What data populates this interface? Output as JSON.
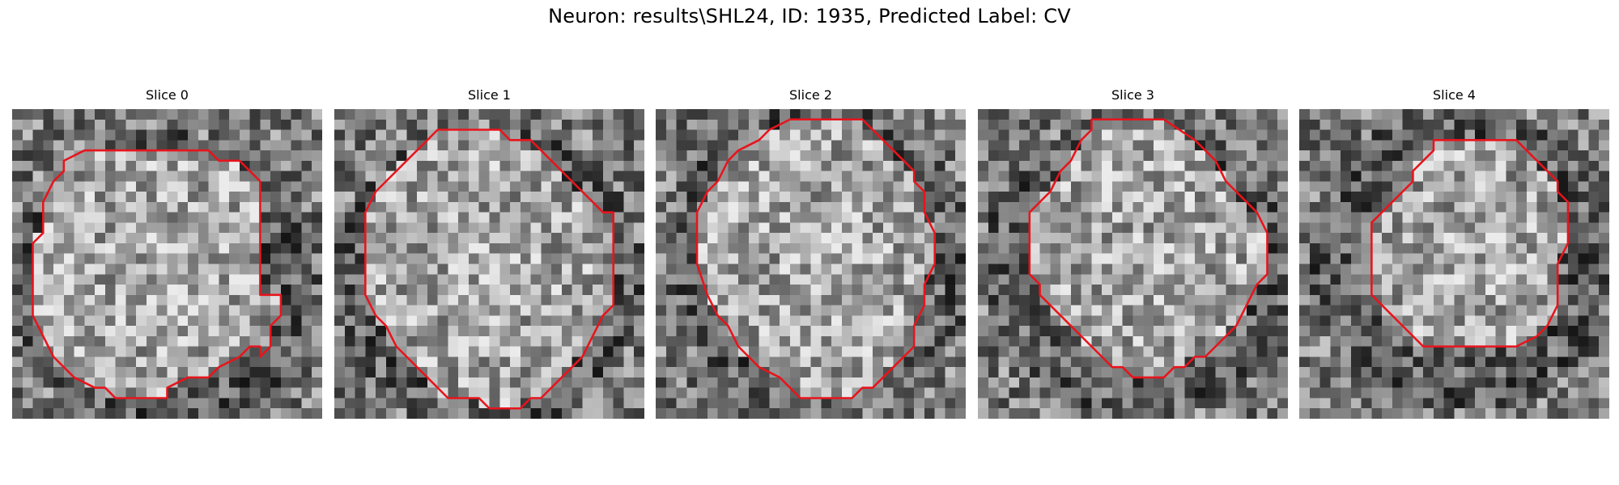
{
  "title": "Neuron: results\\SHL24, ID: 1935, Predicted Label: CV",
  "contour_color": "#e8141c",
  "grid_size": 30,
  "slices": [
    {
      "title": "Slice 0",
      "seed": 11,
      "contour": [
        [
          8,
          4
        ],
        [
          19,
          4
        ],
        [
          20,
          5
        ],
        [
          22,
          5
        ],
        [
          24,
          7
        ],
        [
          24,
          10
        ],
        [
          24,
          11
        ],
        [
          24,
          16
        ],
        [
          24,
          18
        ],
        [
          26,
          18
        ],
        [
          26,
          20
        ],
        [
          25,
          21
        ],
        [
          25,
          23
        ],
        [
          24,
          24
        ],
        [
          24,
          23
        ],
        [
          23,
          23
        ],
        [
          22,
          24
        ],
        [
          20,
          25
        ],
        [
          19,
          26
        ],
        [
          17,
          26
        ],
        [
          15,
          27
        ],
        [
          15,
          28
        ],
        [
          10,
          28
        ],
        [
          9,
          27
        ],
        [
          8,
          27
        ],
        [
          6,
          26
        ],
        [
          4,
          24
        ],
        [
          3,
          22
        ],
        [
          2,
          20
        ],
        [
          2,
          16
        ],
        [
          2,
          13
        ],
        [
          3,
          12
        ],
        [
          3,
          9
        ],
        [
          4,
          7
        ],
        [
          5,
          6
        ],
        [
          5,
          5
        ],
        [
          7,
          4
        ]
      ]
    },
    {
      "title": "Slice 1",
      "seed": 23,
      "contour": [
        [
          10,
          2
        ],
        [
          16,
          2
        ],
        [
          17,
          3
        ],
        [
          19,
          3
        ],
        [
          21,
          5
        ],
        [
          22,
          6
        ],
        [
          24,
          8
        ],
        [
          25,
          9
        ],
        [
          26,
          10
        ],
        [
          27,
          10
        ],
        [
          27,
          12
        ],
        [
          27,
          15
        ],
        [
          27,
          19
        ],
        [
          26,
          20
        ],
        [
          25,
          22
        ],
        [
          24,
          24
        ],
        [
          23,
          25
        ],
        [
          22,
          26
        ],
        [
          21,
          27
        ],
        [
          20,
          28
        ],
        [
          19,
          28
        ],
        [
          18,
          29
        ],
        [
          17,
          29
        ],
        [
          15,
          29
        ],
        [
          14,
          28
        ],
        [
          13,
          28
        ],
        [
          11,
          28
        ],
        [
          10,
          27
        ],
        [
          9,
          26
        ],
        [
          8,
          25
        ],
        [
          7,
          24
        ],
        [
          6,
          23
        ],
        [
          5,
          21
        ],
        [
          4,
          20
        ],
        [
          3,
          18
        ],
        [
          3,
          16
        ],
        [
          3,
          14
        ],
        [
          3,
          10
        ],
        [
          4,
          8
        ],
        [
          5,
          7
        ],
        [
          6,
          6
        ],
        [
          7,
          5
        ],
        [
          8,
          4
        ],
        [
          9,
          3
        ]
      ]
    },
    {
      "title": "Slice 2",
      "seed": 37,
      "contour": [
        [
          14,
          1
        ],
        [
          20,
          1
        ],
        [
          22,
          3
        ],
        [
          23,
          4
        ],
        [
          24,
          5
        ],
        [
          25,
          6
        ],
        [
          25,
          7
        ],
        [
          26,
          8
        ],
        [
          26,
          10
        ],
        [
          27,
          12
        ],
        [
          27,
          15
        ],
        [
          26,
          17
        ],
        [
          26,
          19
        ],
        [
          25,
          21
        ],
        [
          25,
          23
        ],
        [
          24,
          24
        ],
        [
          23,
          25
        ],
        [
          22,
          26
        ],
        [
          21,
          27
        ],
        [
          20,
          27
        ],
        [
          19,
          28
        ],
        [
          14,
          28
        ],
        [
          13,
          27
        ],
        [
          12,
          26
        ],
        [
          10,
          25
        ],
        [
          9,
          24
        ],
        [
          8,
          23
        ],
        [
          7,
          21
        ],
        [
          6,
          20
        ],
        [
          5,
          18
        ],
        [
          4,
          15
        ],
        [
          4,
          12
        ],
        [
          4,
          10
        ],
        [
          5,
          8
        ],
        [
          6,
          7
        ],
        [
          7,
          5
        ],
        [
          8,
          4
        ],
        [
          10,
          3
        ],
        [
          11,
          2
        ],
        [
          13,
          1
        ]
      ]
    },
    {
      "title": "Slice 3",
      "seed": 53,
      "contour": [
        [
          11,
          1
        ],
        [
          18,
          1
        ],
        [
          21,
          3
        ],
        [
          23,
          5
        ],
        [
          24,
          7
        ],
        [
          27,
          10
        ],
        [
          28,
          12
        ],
        [
          28,
          14
        ],
        [
          28,
          16
        ],
        [
          27,
          17
        ],
        [
          26,
          19
        ],
        [
          25,
          21
        ],
        [
          24,
          22
        ],
        [
          23,
          23
        ],
        [
          22,
          24
        ],
        [
          21,
          24
        ],
        [
          20,
          25
        ],
        [
          19,
          25
        ],
        [
          18,
          26
        ],
        [
          17,
          26
        ],
        [
          15,
          26
        ],
        [
          14,
          25
        ],
        [
          13,
          25
        ],
        [
          12,
          24
        ],
        [
          11,
          23
        ],
        [
          10,
          22
        ],
        [
          9,
          21
        ],
        [
          8,
          20
        ],
        [
          7,
          19
        ],
        [
          6,
          18
        ],
        [
          6,
          17
        ],
        [
          5,
          16
        ],
        [
          5,
          14
        ],
        [
          5,
          11
        ],
        [
          5,
          10
        ],
        [
          6,
          9
        ],
        [
          7,
          8
        ],
        [
          8,
          6
        ],
        [
          9,
          5
        ],
        [
          10,
          3
        ],
        [
          11,
          2
        ]
      ]
    },
    {
      "title": "Slice 4",
      "seed": 71,
      "contour": [
        [
          13,
          3
        ],
        [
          21,
          3
        ],
        [
          22,
          4
        ],
        [
          23,
          5
        ],
        [
          24,
          6
        ],
        [
          25,
          7
        ],
        [
          25,
          8
        ],
        [
          26,
          9
        ],
        [
          26,
          10
        ],
        [
          26,
          12
        ],
        [
          26,
          13
        ],
        [
          25,
          15
        ],
        [
          25,
          19
        ],
        [
          24,
          21
        ],
        [
          23,
          22
        ],
        [
          21,
          23
        ],
        [
          20,
          23
        ],
        [
          19,
          23
        ],
        [
          18,
          23
        ],
        [
          17,
          23
        ],
        [
          16,
          23
        ],
        [
          15,
          23
        ],
        [
          14,
          23
        ],
        [
          13,
          23
        ],
        [
          12,
          23
        ],
        [
          11,
          22
        ],
        [
          10,
          21
        ],
        [
          9,
          20
        ],
        [
          8,
          19
        ],
        [
          7,
          18
        ],
        [
          7,
          17
        ],
        [
          7,
          16
        ],
        [
          7,
          15
        ],
        [
          7,
          13
        ],
        [
          7,
          11
        ],
        [
          8,
          10
        ],
        [
          9,
          9
        ],
        [
          10,
          8
        ],
        [
          11,
          7
        ],
        [
          11,
          6
        ],
        [
          12,
          5
        ],
        [
          13,
          4
        ]
      ]
    }
  ]
}
